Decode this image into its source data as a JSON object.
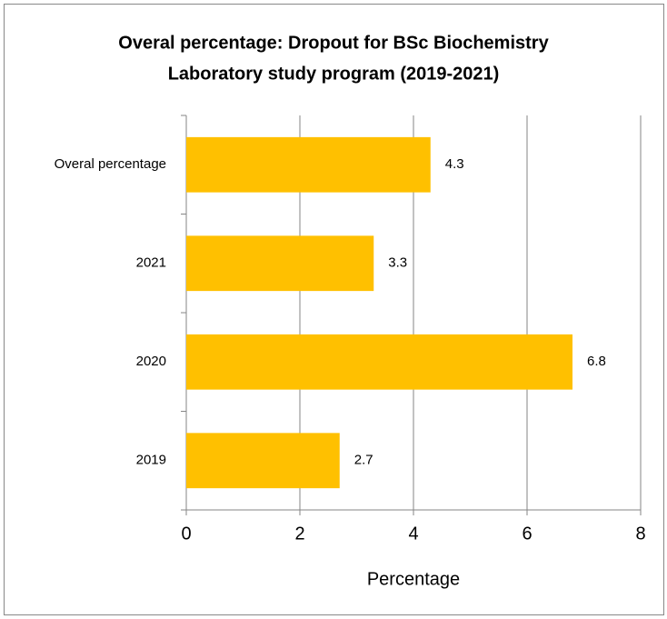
{
  "chart_data": {
    "type": "hbar",
    "title": [
      "Overal percentage: Dropout for BSc Biochemistry",
      "Laboratory study program (2019-2021)"
    ],
    "x_label": "Percentage",
    "categories": [
      "Overal percentage",
      "2021",
      "2020",
      "2019"
    ],
    "values": [
      4.3,
      3.3,
      6.8,
      2.7
    ],
    "color": "#ffc000",
    "xlim": [
      0,
      8
    ],
    "xticks": [
      0,
      2,
      4,
      6,
      8
    ],
    "grid": true
  }
}
